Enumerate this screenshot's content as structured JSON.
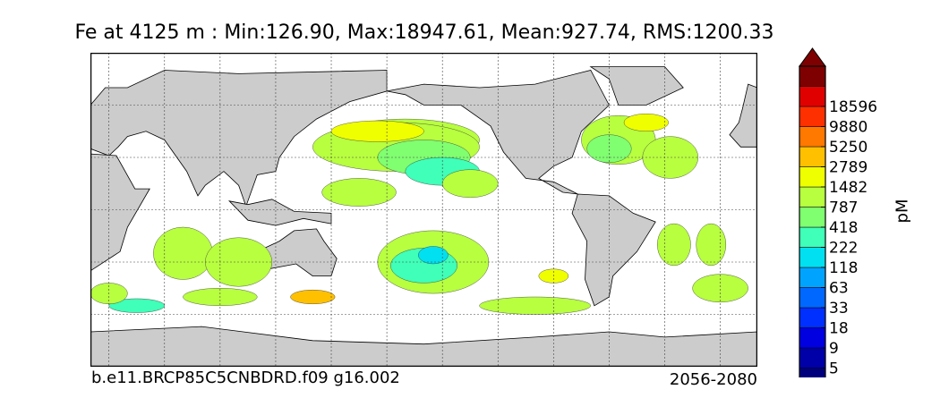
{
  "title": "Fe at 4125 m : Min:126.90, Max:18947.61, Mean:927.74, RMS:1200.33",
  "footer": {
    "case": "b.e11.BRCP85C5CNBDRD.f09 g16.002",
    "period": "2056-2080"
  },
  "chart_data": {
    "type": "heatmap",
    "title": "Fe at 4125 m : Min:126.90, Max:18947.61, Mean:927.74, RMS:1200.33",
    "variable": "Fe",
    "depth": "4125 m",
    "stats": {
      "min": 126.9,
      "max": 18947.61,
      "mean": 927.74,
      "rms": 1200.33
    },
    "units": "pM",
    "grid": true,
    "colorbar": {
      "levels": [
        5,
        9,
        18,
        33,
        63,
        118,
        222,
        418,
        787,
        1482,
        2789,
        5250,
        9880,
        18596
      ],
      "colors": [
        "#00007f",
        "#0000a8",
        "#0000e0",
        "#0030ff",
        "#0068ff",
        "#00a4ff",
        "#00e0f0",
        "#40ffb8",
        "#80ff70",
        "#b8ff40",
        "#f0ff00",
        "#ffc000",
        "#ff7800",
        "#ff3000",
        "#e00000",
        "#7f0000"
      ],
      "extend": "both"
    },
    "colors": {
      "land": "#cccccc",
      "missing": "#ffffff",
      "coast": "#000000"
    }
  }
}
